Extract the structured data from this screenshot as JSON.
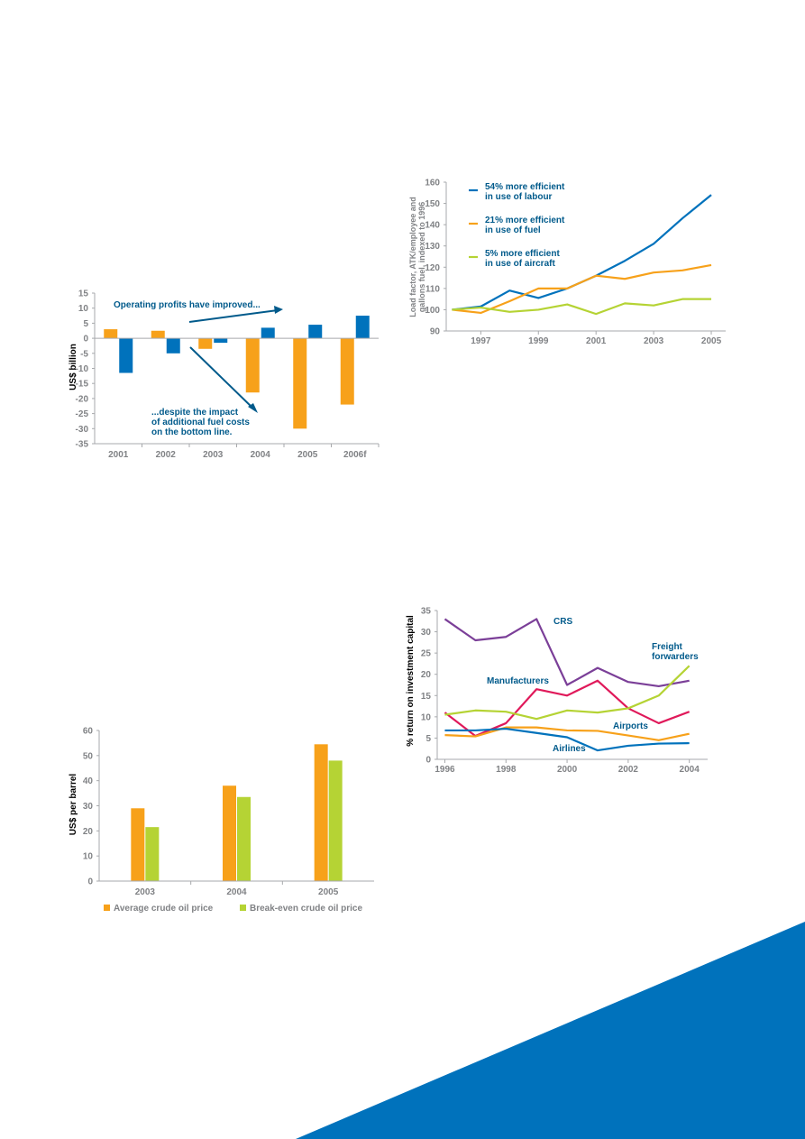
{
  "colors": {
    "orange": "#F7A11A",
    "blue": "#0072BC",
    "green": "#B5D334",
    "purple": "#7B3F98",
    "magenta": "#E0195A",
    "axis": "#A7A9AC",
    "tick": "#808285",
    "annotation": "#005A8B",
    "corner": "#0072BC"
  },
  "chart_data": [
    {
      "type": "bar",
      "categories": [
        "2001",
        "2002",
        "2003",
        "2004",
        "2005",
        "2006f"
      ],
      "series": [
        {
          "color": "orange",
          "values": [
            3,
            2.5,
            -3.5,
            -18,
            -30,
            -22
          ]
        },
        {
          "color": "blue",
          "values": [
            -11.5,
            -5,
            -1.5,
            3.5,
            4.5,
            7.5
          ]
        }
      ],
      "ylabel": "US$ billion",
      "ylim": [
        -35,
        15
      ],
      "yticks": [
        "15",
        "10",
        "5",
        "0",
        "-5",
        "-10",
        "-15",
        "-20",
        "-25",
        "-30",
        "-35"
      ],
      "annotations": [
        {
          "lines": [
            "Operating profits have improved..."
          ]
        },
        {
          "lines": [
            "...despite the impact",
            "of additional fuel costs",
            "on the bottom line."
          ]
        }
      ]
    },
    {
      "type": "line",
      "x": [
        1996,
        1997,
        1998,
        1999,
        2000,
        2001,
        2002,
        2003,
        2004,
        2005
      ],
      "xticks": [
        "1997",
        "1999",
        "2001",
        "2003",
        "2005"
      ],
      "series": [
        {
          "color": "blue",
          "values": [
            100,
            101.5,
            109,
            105.5,
            110,
            116,
            123,
            131,
            143,
            154
          ]
        },
        {
          "color": "orange",
          "values": [
            100,
            98.5,
            104,
            110,
            110,
            116,
            114.5,
            117.5,
            118.5,
            121
          ]
        },
        {
          "color": "green",
          "values": [
            100,
            101,
            99,
            100,
            102.5,
            98,
            103,
            102,
            105,
            105
          ]
        }
      ],
      "legend": [
        {
          "color": "blue",
          "lines": [
            "54% more efficient",
            "in use of labour"
          ]
        },
        {
          "color": "orange",
          "lines": [
            "21% more efficient",
            "in use of fuel"
          ]
        },
        {
          "color": "green",
          "lines": [
            "5% more efficient",
            "in use of aircraft"
          ]
        }
      ],
      "legend_position": "top-left",
      "ylabel_lines": [
        "Load factor, ATK/employee and",
        "gallons fuel, indexed to 1996"
      ],
      "ylim": [
        90,
        160
      ],
      "yticks": [
        "160",
        "150",
        "140",
        "130",
        "120",
        "110",
        "100",
        "90"
      ]
    },
    {
      "type": "bar",
      "categories": [
        "2003",
        "2004",
        "2005"
      ],
      "series": [
        {
          "name": "Average crude oil price",
          "color": "orange",
          "values": [
            29,
            38,
            54.5
          ]
        },
        {
          "name": "Break-even crude oil price",
          "color": "green",
          "values": [
            21.5,
            33.5,
            48
          ]
        }
      ],
      "ylabel": "US$ per barrel",
      "ylim": [
        0,
        60
      ],
      "yticks": [
        "60",
        "50",
        "40",
        "30",
        "20",
        "10",
        "0"
      ],
      "legend_position": "bottom"
    },
    {
      "type": "line",
      "x": [
        1996,
        1997,
        1998,
        1999,
        2000,
        2001,
        2002,
        2003,
        2004
      ],
      "xticks": [
        "1996",
        "1998",
        "2000",
        "2002",
        "2004"
      ],
      "series": [
        {
          "name": "CRS",
          "color": "purple",
          "values": [
            33,
            28,
            28.8,
            33,
            17.5,
            21.5,
            18.2,
            17.2,
            18.5
          ]
        },
        {
          "name": "Manufacturers",
          "color": "magenta",
          "values": [
            11,
            5.5,
            8.5,
            16.5,
            15,
            18.5,
            12,
            8.5,
            11.2
          ]
        },
        {
          "name": "Freight forwarders",
          "label_lines": [
            "Freight",
            "forwarders"
          ],
          "color": "green",
          "values": [
            10.5,
            11.5,
            11.2,
            9.5,
            11.5,
            11,
            12,
            15,
            22
          ]
        },
        {
          "name": "Airports",
          "color": "orange",
          "values": [
            5.7,
            5.4,
            7.5,
            7.5,
            6.8,
            6.7,
            5.6,
            4.5,
            6
          ]
        },
        {
          "name": "Airlines",
          "color": "blue",
          "values": [
            6.8,
            6.8,
            7.2,
            6.2,
            5.2,
            2.1,
            3.2,
            3.7,
            3.8
          ]
        }
      ],
      "ylabel": "% return on investment capital",
      "ylim": [
        0,
        35
      ],
      "yticks": [
        "35",
        "30",
        "25",
        "20",
        "15",
        "10",
        "5",
        "0"
      ]
    }
  ]
}
